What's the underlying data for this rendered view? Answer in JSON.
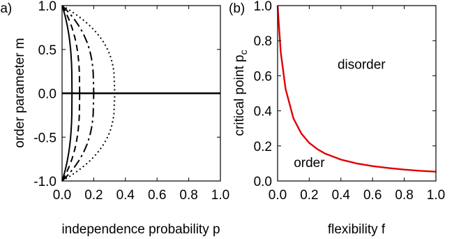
{
  "chart_data": [
    {
      "panel_label": "(a)",
      "type": "line",
      "xlabel": "independence probability p",
      "ylabel": "order parameter m",
      "xlim": [
        0,
        1
      ],
      "ylim": [
        -1,
        1
      ],
      "x_ticks": [
        "0.0",
        "0.2",
        "0.4",
        "0.6",
        "0.8",
        "1.0"
      ],
      "y_ticks": [
        "-1.0",
        "-0.5",
        "0.0",
        "0.5",
        "1.0"
      ],
      "grid": false,
      "series": [
        {
          "style": "solid",
          "pc": 0.0625
        },
        {
          "style": "dashed",
          "pc": 0.111
        },
        {
          "style": "dashdot",
          "pc": 0.2
        },
        {
          "style": "dotted",
          "pc": 0.333
        }
      ],
      "zero_branch": {
        "y": 0,
        "x_range": [
          0,
          1
        ]
      },
      "line_color": "#000000"
    },
    {
      "panel_label": "(b)",
      "type": "line",
      "xlabel": "flexibility f",
      "ylabel": "critical point p",
      "ylabel_subscript": "c",
      "xlim": [
        0,
        1
      ],
      "ylim": [
        0,
        1
      ],
      "x_ticks": [
        "0.0",
        "0.2",
        "0.4",
        "0.6",
        "0.8",
        "1.0"
      ],
      "y_ticks": [
        "0.0",
        "0.2",
        "0.4",
        "0.6",
        "0.8",
        "1.0"
      ],
      "grid": false,
      "series": [
        {
          "color": "#e00000",
          "x": [
            0.0,
            0.02,
            0.05,
            0.1,
            0.15,
            0.2,
            0.25,
            0.3,
            0.4,
            0.5,
            0.6,
            0.7,
            0.8,
            0.9,
            1.0
          ],
          "y": [
            1.0,
            0.735,
            0.526,
            0.357,
            0.27,
            0.217,
            0.182,
            0.156,
            0.122,
            0.1,
            0.085,
            0.074,
            0.065,
            0.058,
            0.053
          ]
        }
      ],
      "annotations": [
        {
          "text": "disorder",
          "x": 0.53,
          "y": 0.64
        },
        {
          "text": "order",
          "x": 0.2,
          "y": 0.08
        }
      ]
    }
  ]
}
